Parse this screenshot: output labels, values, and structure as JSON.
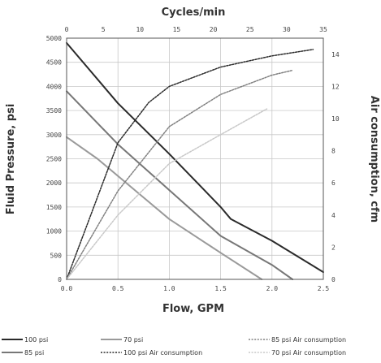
{
  "chart_data": {
    "type": "line",
    "title": "",
    "x_top_label": "Cycles/min",
    "xlabel": "Flow, GPM",
    "ylabel": "Fluid Pressure, psi",
    "y2label": "Air consumption, cfm",
    "xlim": [
      0,
      2.5
    ],
    "x_top_lim": [
      0,
      35
    ],
    "ylim": [
      0,
      5000
    ],
    "y2lim": [
      0,
      15
    ],
    "x_ticks": [
      "0.0",
      "0.5",
      "1.0",
      "1.5",
      "2.0",
      "2.5"
    ],
    "x_top_ticks": [
      "0",
      "5",
      "10",
      "15",
      "20",
      "25",
      "30",
      "35"
    ],
    "y_ticks": [
      "0",
      "500",
      "1000",
      "1500",
      "2000",
      "2500",
      "3000",
      "3500",
      "4000",
      "4500",
      "5000"
    ],
    "y2_ticks": [
      "0",
      "2",
      "4",
      "6",
      "8",
      "10",
      "12",
      "14"
    ],
    "grid": true,
    "legend_position": "bottom",
    "colors": {
      "p100": "#2a2a2a",
      "p85": "#777777",
      "p70": "#9a9a9a",
      "a100": "#2a2a2a",
      "a85": "#808080",
      "a70": "#c8c8c8"
    },
    "series": [
      {
        "key": "p100",
        "name": "100 psi",
        "axis": "left",
        "style": "solid",
        "width": 2,
        "x": [
          0,
          0.5,
          1.0,
          1.5,
          1.6,
          2.0,
          2.5
        ],
        "y": [
          4900,
          3650,
          2600,
          1500,
          1250,
          800,
          150
        ]
      },
      {
        "key": "p85",
        "name": "85 psi",
        "axis": "left",
        "style": "solid",
        "width": 2,
        "x": [
          0,
          0.5,
          1.0,
          1.5,
          2.0,
          2.2
        ],
        "y": [
          3900,
          2800,
          1850,
          900,
          300,
          0
        ]
      },
      {
        "key": "p70",
        "name": "70 psi",
        "axis": "left",
        "style": "solid",
        "width": 2,
        "x": [
          0,
          0.3,
          1.0,
          1.5,
          1.9
        ],
        "y": [
          2950,
          2500,
          1250,
          550,
          0
        ]
      },
      {
        "key": "a100",
        "name": "100 psi Air consumption",
        "axis": "right",
        "style": "dotted",
        "width": 1.5,
        "x": [
          0,
          0.5,
          0.8,
          1.0,
          1.5,
          2.0,
          2.4
        ],
        "y": [
          0,
          8.5,
          11.0,
          12.0,
          13.2,
          13.9,
          14.3
        ]
      },
      {
        "key": "a85",
        "name": "85 psi Air consumption",
        "axis": "right",
        "style": "dotted",
        "width": 1.5,
        "x": [
          0,
          0.5,
          1.0,
          1.5,
          2.0,
          2.2
        ],
        "y": [
          0,
          5.5,
          9.5,
          11.5,
          12.7,
          13.0
        ]
      },
      {
        "key": "a70",
        "name": "70 psi Air consumption",
        "axis": "right",
        "style": "dotted",
        "width": 1.5,
        "x": [
          0,
          0.5,
          1.0,
          1.5,
          1.95
        ],
        "y": [
          0,
          4.0,
          7.2,
          9.0,
          10.6
        ]
      }
    ],
    "legend_rows": [
      [
        "p100",
        "p70",
        "a85"
      ],
      [
        "p85",
        "a100",
        "a70"
      ]
    ]
  }
}
